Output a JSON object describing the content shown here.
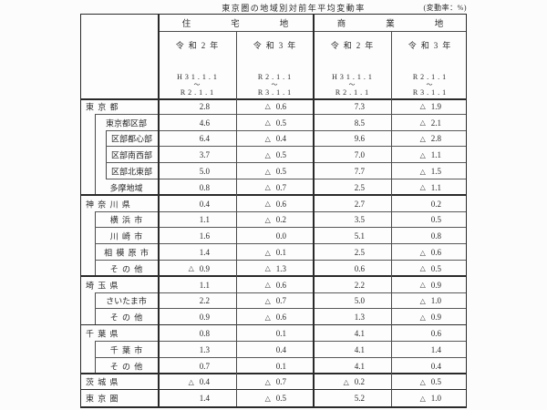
{
  "title": "東京圏の地域別対前年平均変動率",
  "unit_note": "(変動率：%)",
  "header": {
    "residential": "住宅地",
    "commercial": "商業地",
    "year_cols": [
      {
        "year": "令和2年",
        "period": [
          "H31.1.1",
          "〜",
          "R2.1.1"
        ]
      },
      {
        "year": "令和3年",
        "period": [
          "R2.1.1",
          "〜",
          "R3.1.1"
        ]
      }
    ]
  },
  "negative_mark": "△",
  "sections": [
    {
      "rows": [
        {
          "label": "東 京 都",
          "level": 0,
          "values": [
            "2.8",
            "△ 0.6",
            "7.3",
            "△ 1.9"
          ]
        },
        {
          "label": "東京都区部",
          "level": 1,
          "values": [
            "4.6",
            "△ 0.5",
            "8.5",
            "△ 2.1"
          ]
        },
        {
          "label": "区部都心部",
          "level": 2,
          "values": [
            "6.4",
            "△ 0.4",
            "9.6",
            "△ 2.8"
          ]
        },
        {
          "label": "区部南西部",
          "level": 2,
          "values": [
            "3.7",
            "△ 0.5",
            "7.0",
            "△ 1.1"
          ]
        },
        {
          "label": "区部北東部",
          "level": 2,
          "values": [
            "5.0",
            "△ 0.5",
            "7.7",
            "△ 1.5"
          ]
        },
        {
          "label": "多摩地域",
          "level": 1,
          "values": [
            "0.8",
            "△ 0.7",
            "2.5",
            "△ 1.1"
          ]
        }
      ]
    },
    {
      "rows": [
        {
          "label": "神 奈 川 県",
          "level": 0,
          "values": [
            "0.4",
            "△ 0.6",
            "2.7",
            "0.2"
          ]
        },
        {
          "label": "横 浜 市",
          "level": 1,
          "values": [
            "1.1",
            "△ 0.2",
            "3.5",
            "0.5"
          ]
        },
        {
          "label": "川 崎 市",
          "level": 1,
          "values": [
            "1.6",
            "0.0",
            "5.1",
            "0.8"
          ]
        },
        {
          "label": "相 模 原 市",
          "level": 1,
          "values": [
            "1.4",
            "△ 0.1",
            "2.5",
            "△ 0.6"
          ]
        },
        {
          "label": "そ の 他",
          "level": 1,
          "values": [
            "△ 0.9",
            "△ 1.3",
            "0.6",
            "△ 0.5"
          ]
        }
      ]
    },
    {
      "rows": [
        {
          "label": "埼 玉 県",
          "level": 0,
          "values": [
            "1.1",
            "△ 0.6",
            "2.2",
            "△ 0.9"
          ]
        },
        {
          "label": "さいたま市",
          "level": 1,
          "values": [
            "2.2",
            "△ 0.7",
            "5.0",
            "△ 1.0"
          ]
        },
        {
          "label": "そ の 他",
          "level": 1,
          "values": [
            "0.9",
            "△ 0.6",
            "1.3",
            "△ 0.9"
          ]
        }
      ]
    },
    {
      "rows": [
        {
          "label": "千 葉 県",
          "level": 0,
          "values": [
            "0.8",
            "0.1",
            "4.1",
            "0.6"
          ]
        },
        {
          "label": "千 葉 市",
          "level": 1,
          "values": [
            "1.3",
            "0.4",
            "4.1",
            "1.4"
          ]
        },
        {
          "label": "そ の 他",
          "level": 1,
          "values": [
            "0.7",
            "0.1",
            "4.1",
            "0.4"
          ]
        }
      ]
    },
    {
      "rows": [
        {
          "label": "茨 城 県",
          "level": 0,
          "values": [
            "△ 0.4",
            "△ 0.7",
            "△ 0.2",
            "△ 0.5"
          ]
        }
      ]
    },
    {
      "rows": [
        {
          "label": "東 京 圏",
          "level": 0,
          "values": [
            "1.4",
            "△ 0.5",
            "5.2",
            "△ 1.0"
          ]
        }
      ]
    }
  ]
}
